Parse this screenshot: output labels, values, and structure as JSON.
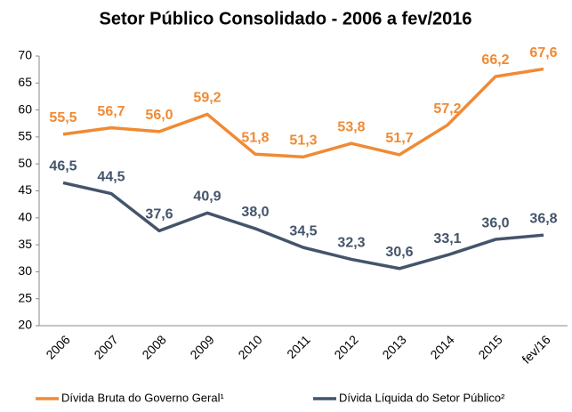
{
  "chart_data": {
    "type": "line",
    "title": "Setor Público Consolidado - 2006 a fev/2016",
    "categories": [
      "2006",
      "2007",
      "2008",
      "2009",
      "2010",
      "2011",
      "2012",
      "2013",
      "2014",
      "2015",
      "fev/16"
    ],
    "series": [
      {
        "name": "Dívida Bruta do Governo Geral¹",
        "color": "#f08a34",
        "values": [
          55.5,
          56.7,
          56.0,
          59.2,
          51.8,
          51.3,
          53.8,
          51.7,
          57.2,
          66.2,
          67.6
        ],
        "value_labels": [
          "55,5",
          "56,7",
          "56,0",
          "59,2",
          "51,8",
          "51,3",
          "53,8",
          "51,7",
          "57,2",
          "66,2",
          "67,6"
        ]
      },
      {
        "name": "Dívida Líquida do Setor Público²",
        "color": "#44546a",
        "values": [
          46.5,
          44.5,
          37.6,
          40.9,
          38.0,
          34.5,
          32.3,
          30.6,
          33.1,
          36.0,
          36.8
        ],
        "value_labels": [
          "46,5",
          "44,5",
          "37,6",
          "40,9",
          "38,0",
          "34,5",
          "32,3",
          "30,6",
          "33,1",
          "36,0",
          "36,8"
        ]
      }
    ],
    "ylim": [
      20,
      70
    ],
    "yticks": [
      20,
      25,
      30,
      35,
      40,
      45,
      50,
      55,
      60,
      65,
      70
    ],
    "grid": false
  }
}
